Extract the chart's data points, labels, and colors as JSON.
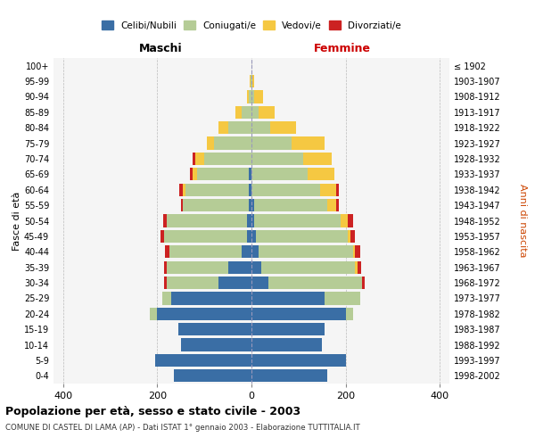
{
  "age_groups": [
    "0-4",
    "5-9",
    "10-14",
    "15-19",
    "20-24",
    "25-29",
    "30-34",
    "35-39",
    "40-44",
    "45-49",
    "50-54",
    "55-59",
    "60-64",
    "65-69",
    "70-74",
    "75-79",
    "80-84",
    "85-89",
    "90-94",
    "95-99",
    "100+"
  ],
  "birth_years": [
    "1998-2002",
    "1993-1997",
    "1988-1992",
    "1983-1987",
    "1978-1982",
    "1973-1977",
    "1968-1972",
    "1963-1967",
    "1958-1962",
    "1953-1957",
    "1948-1952",
    "1943-1947",
    "1938-1942",
    "1933-1937",
    "1928-1932",
    "1923-1927",
    "1918-1922",
    "1913-1917",
    "1908-1912",
    "1903-1907",
    "≤ 1902"
  ],
  "males": {
    "celibi": [
      165,
      205,
      150,
      155,
      200,
      170,
      70,
      50,
      20,
      10,
      10,
      5,
      5,
      5,
      0,
      0,
      0,
      0,
      0,
      0,
      0
    ],
    "coniugati": [
      0,
      0,
      0,
      0,
      15,
      20,
      110,
      130,
      155,
      175,
      170,
      140,
      135,
      110,
      100,
      80,
      50,
      20,
      5,
      2,
      0
    ],
    "vedovi": [
      0,
      0,
      0,
      0,
      0,
      0,
      0,
      0,
      0,
      0,
      0,
      0,
      5,
      10,
      20,
      15,
      20,
      15,
      5,
      2,
      0
    ],
    "divorziati": [
      0,
      0,
      0,
      0,
      0,
      0,
      5,
      5,
      8,
      8,
      8,
      5,
      8,
      5,
      5,
      0,
      0,
      0,
      0,
      0,
      0
    ]
  },
  "females": {
    "nubili": [
      160,
      200,
      150,
      155,
      200,
      155,
      35,
      20,
      15,
      10,
      5,
      5,
      0,
      0,
      0,
      0,
      0,
      0,
      0,
      0,
      0
    ],
    "coniugate": [
      0,
      0,
      0,
      0,
      15,
      75,
      200,
      200,
      200,
      195,
      185,
      155,
      145,
      120,
      110,
      85,
      40,
      15,
      5,
      2,
      0
    ],
    "vedove": [
      0,
      0,
      0,
      0,
      0,
      0,
      0,
      5,
      5,
      5,
      15,
      20,
      35,
      55,
      60,
      70,
      55,
      35,
      20,
      3,
      0
    ],
    "divorziate": [
      0,
      0,
      0,
      0,
      0,
      0,
      5,
      8,
      10,
      10,
      10,
      5,
      5,
      0,
      0,
      0,
      0,
      0,
      0,
      0,
      0
    ]
  },
  "colors": {
    "celibi_nubili": "#3a6ea5",
    "coniugati": "#b5cc96",
    "vedovi": "#f5c842",
    "divorziati": "#cc2222"
  },
  "xlim": 420,
  "title": "Popolazione per età, sesso e stato civile - 2003",
  "subtitle": "COMUNE DI CASTEL DI LAMA (AP) - Dati ISTAT 1° gennaio 2003 - Elaborazione TUTTITALIA.IT",
  "ylabel": "Fasce di età",
  "ylabel_right": "Anni di nascita",
  "xlabel_left": "Maschi",
  "xlabel_right": "Femmine",
  "legend_labels": [
    "Celibi/Nubili",
    "Coniugati/e",
    "Vedovi/e",
    "Divorziati/e"
  ],
  "xtick_labels": [
    "400",
    "200",
    "0",
    "200",
    "400"
  ],
  "bg_color": "#f5f5f5"
}
